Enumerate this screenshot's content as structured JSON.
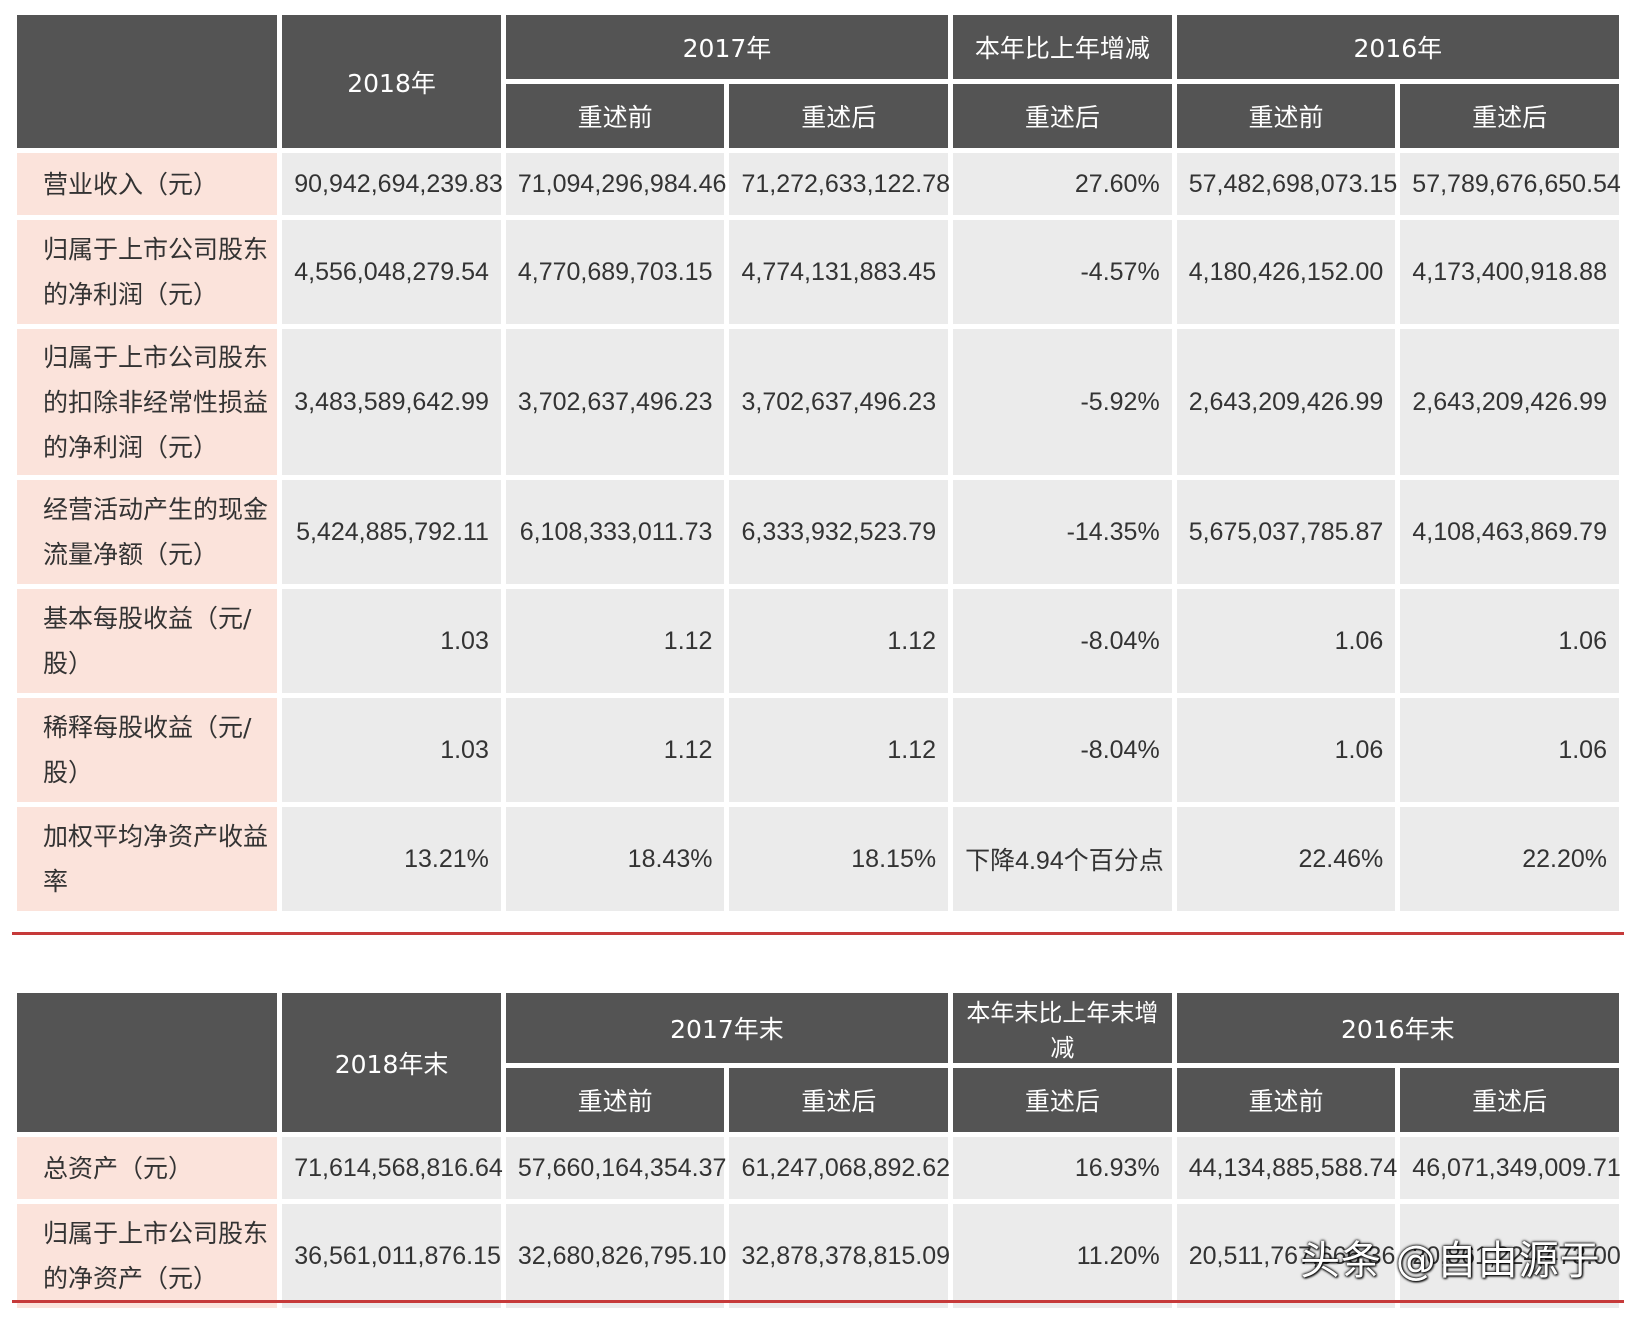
{
  "table1": {
    "header": {
      "y2018": "2018年",
      "y2017": "2017年",
      "change": "本年比上年增减",
      "y2016": "2016年",
      "before": "重述前",
      "after": "重述后"
    },
    "rows": [
      {
        "label": "营业收入（元）",
        "v2018": "90,942,694,239.83",
        "v2017_before": "71,094,296,984.46",
        "v2017_after": "71,272,633,122.78",
        "change": "27.60%",
        "v2016_before": "57,482,698,073.15",
        "v2016_after": "57,789,676,650.54"
      },
      {
        "label": "归属于上市公司股东的净利润（元）",
        "v2018": "4,556,048,279.54",
        "v2017_before": "4,770,689,703.15",
        "v2017_after": "4,774,131,883.45",
        "change": "-4.57%",
        "v2016_before": "4,180,426,152.00",
        "v2016_after": "4,173,400,918.88"
      },
      {
        "label": "归属于上市公司股东的扣除非经常性损益的净利润（元）",
        "v2018": "3,483,589,642.99",
        "v2017_before": "3,702,637,496.23",
        "v2017_after": "3,702,637,496.23",
        "change": "-5.92%",
        "v2016_before": "2,643,209,426.99",
        "v2016_after": "2,643,209,426.99"
      },
      {
        "label": "经营活动产生的现金流量净额（元）",
        "v2018": "5,424,885,792.11",
        "v2017_before": "6,108,333,011.73",
        "v2017_after": "6,333,932,523.79",
        "change": "-14.35%",
        "v2016_before": "5,675,037,785.87",
        "v2016_after": "4,108,463,869.79"
      },
      {
        "label": "基本每股收益（元/股）",
        "v2018": "1.03",
        "v2017_before": "1.12",
        "v2017_after": "1.12",
        "change": "-8.04%",
        "v2016_before": "1.06",
        "v2016_after": "1.06"
      },
      {
        "label": "稀释每股收益（元/股）",
        "v2018": "1.03",
        "v2017_before": "1.12",
        "v2017_after": "1.12",
        "change": "-8.04%",
        "v2016_before": "1.06",
        "v2016_after": "1.06"
      },
      {
        "label": "加权平均净资产收益率",
        "v2018": "13.21%",
        "v2017_before": "18.43%",
        "v2017_after": "18.15%",
        "change": "下降4.94个百分点",
        "v2016_before": "22.46%",
        "v2016_after": "22.20%"
      }
    ]
  },
  "table2": {
    "header": {
      "y2018": "2018年末",
      "y2017": "2017年末",
      "change": "本年末比上年末增减",
      "y2016": "2016年末",
      "before": "重述前",
      "after": "重述后"
    },
    "rows": [
      {
        "label": "总资产（元）",
        "v2018": "71,614,568,816.64",
        "v2017_before": "57,660,164,354.37",
        "v2017_after": "61,247,068,892.62",
        "change": "16.93%",
        "v2016_before": "44,134,885,588.74",
        "v2016_after": "46,071,349,009.71"
      },
      {
        "label": "归属于上市公司股东的净资产（元）",
        "v2018": "36,561,011,876.15",
        "v2017_before": "32,680,826,795.10",
        "v2017_after": "32,878,378,815.09",
        "change": "11.20%",
        "v2016_before": "20,511,767,666.36",
        "v2016_after": "20,861,224,473.00"
      }
    ]
  },
  "watermark": "头条 @自由源于"
}
